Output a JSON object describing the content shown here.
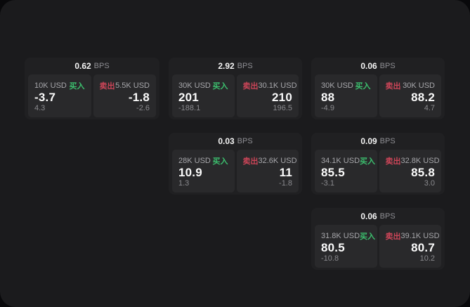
{
  "labels": {
    "bps": "BPS",
    "buy": "买入",
    "sell": "卖出"
  },
  "colors": {
    "buy_green": "#3cbf6e",
    "sell_red": "#cc4558",
    "panel_bg": "#1b1b1d",
    "card_bg": "#202022",
    "tile_bg": "#29292b",
    "primary_text": "#fafafa",
    "secondary_text": "#a7a7ab",
    "muted_text": "#8a8a8e"
  },
  "cards": [
    {
      "bps_value": "0.62",
      "buy": {
        "size": "10K USD",
        "price": "-3.7",
        "change": "4.3"
      },
      "sell": {
        "size": "5.5K USD",
        "price": "-1.8",
        "change": "-2.6"
      }
    },
    {
      "bps_value": "2.92",
      "buy": {
        "size": "30K USD",
        "price": "201",
        "change": "-188.1"
      },
      "sell": {
        "size": "30.1K USD",
        "price": "210",
        "change": "196.5"
      }
    },
    {
      "bps_value": "0.06",
      "buy": {
        "size": "30K USD",
        "price": "88",
        "change": "-4.9"
      },
      "sell": {
        "size": "30K USD",
        "price": "88.2",
        "change": "4.7"
      }
    },
    {
      "bps_value": "0.03",
      "buy": {
        "size": "28K USD",
        "price": "10.9",
        "change": "1.3"
      },
      "sell": {
        "size": "32.6K USD",
        "price": "11",
        "change": "-1.8"
      }
    },
    {
      "bps_value": "0.09",
      "buy": {
        "size": "34.1K USD",
        "price": "85.5",
        "change": "-3.1"
      },
      "sell": {
        "size": "32.8K USD",
        "price": "85.8",
        "change": "3.0"
      }
    },
    {
      "bps_value": "0.06",
      "buy": {
        "size": "31.8K USD",
        "price": "80.5",
        "change": "-10.8"
      },
      "sell": {
        "size": "39.1K USD",
        "price": "80.7",
        "change": "10.2"
      }
    }
  ]
}
